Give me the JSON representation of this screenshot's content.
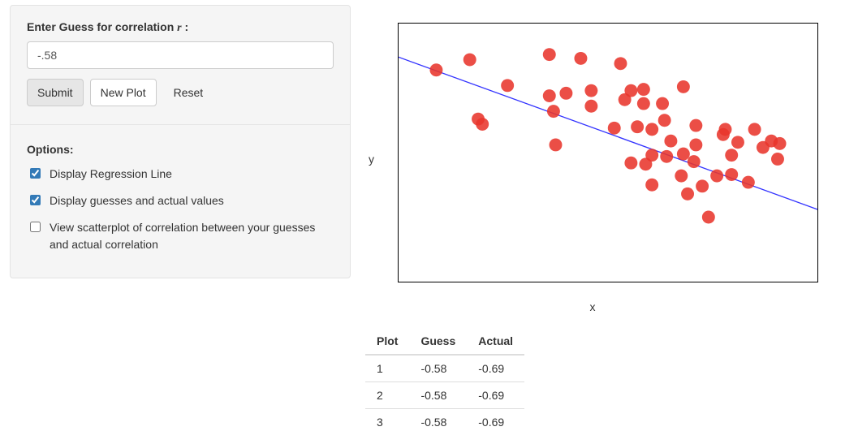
{
  "form": {
    "label_prefix": "Enter Guess for correlation ",
    "label_var": "r",
    "label_suffix": " :",
    "value": "-.58",
    "buttons": {
      "submit": "Submit",
      "newplot": "New Plot",
      "reset": "Reset"
    }
  },
  "options": {
    "title": "Options:",
    "items": [
      {
        "label": "Display Regression Line",
        "checked": true
      },
      {
        "label": "Display guesses and actual values",
        "checked": true
      },
      {
        "label": "View scatterplot of correlation between your guesses and actual correlation",
        "checked": false
      }
    ]
  },
  "chart": {
    "xlabel": "x",
    "ylabel": "y",
    "xlim": [
      0,
      10
    ],
    "ylim": [
      0,
      10
    ],
    "line": {
      "x1": 0,
      "y1": 8.7,
      "x2": 10,
      "y2": 2.8,
      "color": "#3333ff",
      "width": 1.3
    },
    "point_style": {
      "fill": "#e8362c",
      "opacity": 0.88,
      "r": 8
    },
    "points": [
      [
        0.9,
        8.2
      ],
      [
        1.7,
        8.6
      ],
      [
        1.9,
        6.3
      ],
      [
        2.0,
        6.1
      ],
      [
        2.6,
        7.6
      ],
      [
        3.6,
        8.8
      ],
      [
        3.6,
        7.2
      ],
      [
        3.7,
        6.6
      ],
      [
        3.75,
        5.3
      ],
      [
        4.0,
        7.3
      ],
      [
        4.35,
        8.65
      ],
      [
        4.6,
        7.4
      ],
      [
        4.6,
        6.8
      ],
      [
        5.15,
        5.95
      ],
      [
        5.3,
        8.45
      ],
      [
        5.4,
        7.05
      ],
      [
        5.55,
        7.4
      ],
      [
        5.55,
        4.6
      ],
      [
        5.7,
        6.0
      ],
      [
        5.85,
        7.45
      ],
      [
        5.85,
        6.9
      ],
      [
        5.9,
        4.55
      ],
      [
        6.05,
        5.9
      ],
      [
        6.05,
        4.9
      ],
      [
        6.05,
        3.75
      ],
      [
        6.3,
        6.9
      ],
      [
        6.35,
        6.25
      ],
      [
        6.4,
        4.85
      ],
      [
        6.5,
        5.45
      ],
      [
        6.75,
        4.1
      ],
      [
        6.8,
        7.55
      ],
      [
        6.8,
        4.95
      ],
      [
        6.9,
        3.4
      ],
      [
        7.05,
        4.65
      ],
      [
        7.1,
        6.05
      ],
      [
        7.1,
        5.3
      ],
      [
        7.25,
        3.7
      ],
      [
        7.4,
        2.5
      ],
      [
        7.6,
        4.1
      ],
      [
        7.75,
        5.7
      ],
      [
        7.8,
        5.9
      ],
      [
        7.95,
        4.15
      ],
      [
        7.95,
        4.9
      ],
      [
        8.1,
        5.4
      ],
      [
        8.35,
        3.85
      ],
      [
        8.5,
        5.9
      ],
      [
        8.7,
        5.2
      ],
      [
        8.9,
        5.45
      ],
      [
        9.05,
        4.75
      ],
      [
        9.1,
        5.35
      ]
    ]
  },
  "table": {
    "headers": [
      "Plot",
      "Guess",
      "Actual"
    ],
    "rows": [
      [
        "1",
        "-0.58",
        "-0.69"
      ],
      [
        "2",
        "-0.58",
        "-0.69"
      ],
      [
        "3",
        "-0.58",
        "-0.69"
      ]
    ]
  }
}
